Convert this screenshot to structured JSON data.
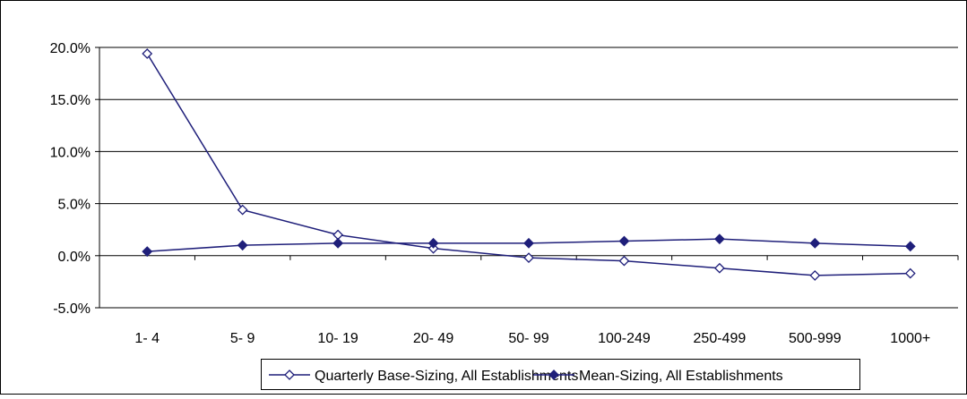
{
  "chart_data": {
    "type": "line",
    "categories": [
      "1- 4",
      "5- 9",
      "10- 19",
      "20- 49",
      "50- 99",
      "100-249",
      "250-499",
      "500-999",
      "1000+"
    ],
    "series": [
      {
        "name": "Quarterly Base-Sizing, All Establishments",
        "values": [
          19.4,
          4.4,
          2.0,
          0.7,
          -0.2,
          -0.5,
          -1.2,
          -1.9,
          -1.7
        ],
        "marker": "open-diamond",
        "color": "#1f1f7a"
      },
      {
        "name": "Mean-Sizing, All Establishments",
        "values": [
          0.4,
          1.0,
          1.2,
          1.2,
          1.2,
          1.4,
          1.6,
          1.2,
          0.9
        ],
        "marker": "filled-diamond",
        "color": "#1f1f7a"
      }
    ],
    "y_ticks": [
      "20.0%",
      "15.0%",
      "10.0%",
      "5.0%",
      "0.0%",
      "-5.0%"
    ],
    "ylim": [
      -5,
      20
    ],
    "ytick_step": 5,
    "grid": true,
    "legend_position": "bottom"
  }
}
